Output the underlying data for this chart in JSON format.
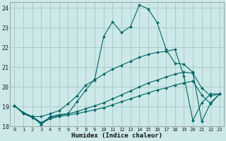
{
  "xlabel": "Humidex (Indice chaleur)",
  "background_color": "#cce8e8",
  "grid_color": "#aacccc",
  "line_color": "#006666",
  "xlim": [
    -0.5,
    23.5
  ],
  "ylim": [
    18,
    24.3
  ],
  "yticks": [
    18,
    19,
    20,
    21,
    22,
    23,
    24
  ],
  "xticks": [
    0,
    1,
    2,
    3,
    4,
    5,
    6,
    7,
    8,
    9,
    10,
    11,
    12,
    13,
    14,
    15,
    16,
    17,
    18,
    19,
    20,
    21,
    22,
    23
  ],
  "series": [
    {
      "x": [
        0,
        1,
        2,
        3,
        4,
        5,
        6,
        7,
        8,
        9,
        10,
        11,
        12,
        13,
        14,
        15,
        16,
        17,
        18,
        19,
        20,
        21,
        22,
        23
      ],
      "y": [
        19.05,
        18.7,
        18.5,
        18.1,
        18.5,
        18.6,
        18.65,
        19.25,
        19.85,
        20.4,
        22.55,
        23.3,
        22.75,
        23.05,
        24.15,
        23.95,
        23.25,
        21.9,
        21.2,
        21.15,
        20.75,
        18.25,
        19.2,
        19.65
      ]
    },
    {
      "x": [
        0,
        1,
        2,
        3,
        4,
        5,
        6,
        7,
        8,
        9,
        10,
        11,
        12,
        13,
        14,
        15,
        16,
        17,
        18,
        19,
        20,
        21,
        22,
        23
      ],
      "y": [
        19.05,
        18.7,
        18.5,
        18.5,
        18.65,
        18.8,
        19.15,
        19.55,
        20.1,
        20.35,
        20.65,
        20.9,
        21.1,
        21.3,
        21.5,
        21.65,
        21.75,
        21.8,
        21.9,
        20.55,
        18.3,
        19.2,
        19.65,
        19.65
      ]
    },
    {
      "x": [
        0,
        1,
        2,
        3,
        4,
        5,
        6,
        7,
        8,
        9,
        10,
        11,
        12,
        13,
        14,
        15,
        16,
        17,
        18,
        19,
        20,
        21,
        22,
        23
      ],
      "y": [
        19.05,
        18.7,
        18.5,
        18.2,
        18.45,
        18.55,
        18.65,
        18.75,
        18.9,
        19.05,
        19.2,
        19.4,
        19.6,
        19.8,
        20.0,
        20.2,
        20.35,
        20.5,
        20.65,
        20.75,
        20.7,
        19.95,
        19.55,
        19.65
      ]
    },
    {
      "x": [
        0,
        1,
        2,
        3,
        4,
        5,
        6,
        7,
        8,
        9,
        10,
        11,
        12,
        13,
        14,
        15,
        16,
        17,
        18,
        19,
        20,
        21,
        22,
        23
      ],
      "y": [
        19.05,
        18.65,
        18.45,
        18.15,
        18.4,
        18.5,
        18.58,
        18.65,
        18.75,
        18.85,
        18.95,
        19.1,
        19.25,
        19.4,
        19.55,
        19.7,
        19.85,
        19.95,
        20.1,
        20.2,
        20.3,
        19.6,
        19.15,
        19.65
      ]
    }
  ]
}
